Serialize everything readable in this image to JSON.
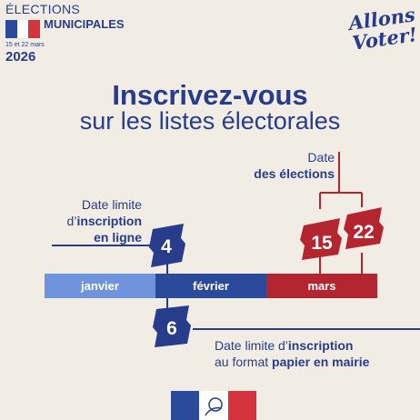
{
  "header": {
    "line1": "ÉLECTIONS",
    "line2": "MUNICIPALES",
    "dates": "15 et 22 mars",
    "year": "2026",
    "slogan_line1": "Allons",
    "slogan_line2": "Voter!"
  },
  "title": {
    "main": "Inscrivez-vous",
    "sub": "sur les listes électorales"
  },
  "timeline": {
    "months": [
      "janvier",
      "février",
      "mars"
    ],
    "colors": {
      "janvier": "#6f93dc",
      "fevrier": "#2c4a9a",
      "mars": "#b3262f",
      "navy": "#283c8c",
      "red": "#b3262f"
    }
  },
  "online": {
    "label_line1": "Date limite",
    "label_prefix": "d’",
    "label_bold": "inscription",
    "label_line3": "en ligne",
    "day": "4"
  },
  "paper": {
    "label_prefix": "Date limite d’",
    "label_bold": "inscription",
    "label_line2_prefix": "au format ",
    "label_line2_bold": "papier en mairie",
    "day": "6"
  },
  "election": {
    "label_line1": "Date",
    "label_line2": "des élections",
    "day1": "15",
    "day2": "22"
  }
}
